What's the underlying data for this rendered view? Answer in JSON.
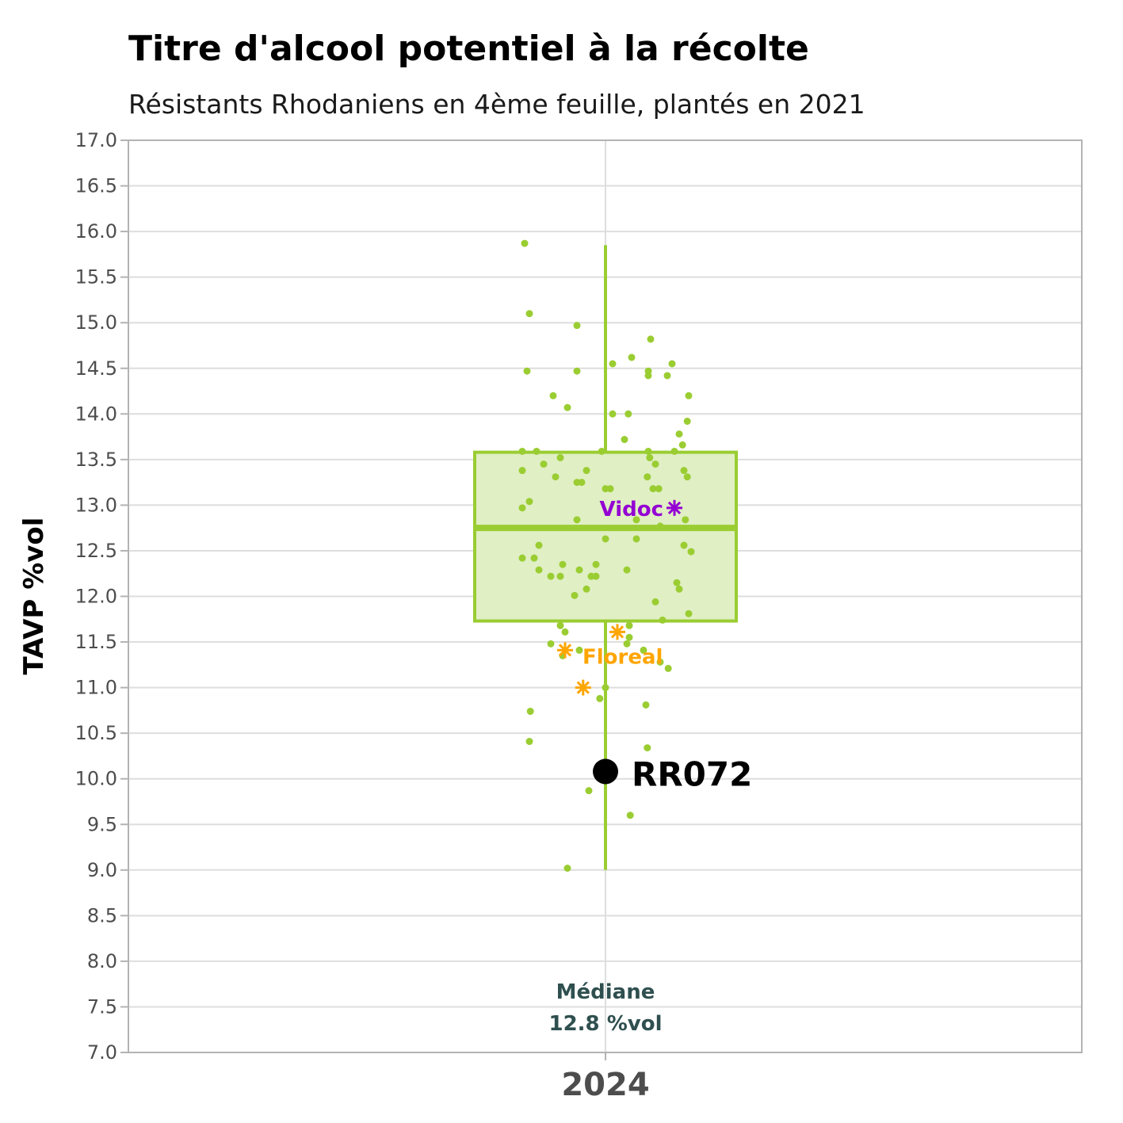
{
  "chart_data": {
    "type": "boxplot",
    "title": "Titre d'alcool potentiel à la récolte",
    "subtitle": "Résistants Rhodaniens en 4ème feuille, plantés en 2021",
    "ylabel": "TAVP %vol",
    "ylim": [
      7.0,
      17.0
    ],
    "ytick_step": 0.5,
    "grid": true,
    "categories": [
      "2024"
    ],
    "box": {
      "category": "2024",
      "whisker_low": 9.0,
      "q1": 11.73,
      "median": 12.75,
      "q3": 13.58,
      "whisker_high": 15.85,
      "color": "#9acd32",
      "fill": "#e0efc4"
    },
    "median_annotation": {
      "line1": "Médiane",
      "line2": "12.8 %vol",
      "color": "#2f4f4f"
    },
    "points": {
      "color": "#9acd32",
      "values": [
        {
          "dx": -0.17,
          "y": 15.87
        },
        {
          "dx": -0.16,
          "y": 15.1
        },
        {
          "dx": -0.06,
          "y": 14.97
        },
        {
          "dx": 0.095,
          "y": 14.82
        },
        {
          "dx": 0.055,
          "y": 14.62
        },
        {
          "dx": 0.015,
          "y": 14.55
        },
        {
          "dx": 0.14,
          "y": 14.55
        },
        {
          "dx": -0.165,
          "y": 14.47
        },
        {
          "dx": -0.06,
          "y": 14.47
        },
        {
          "dx": 0.09,
          "y": 14.47
        },
        {
          "dx": 0.09,
          "y": 14.42
        },
        {
          "dx": 0.13,
          "y": 14.42
        },
        {
          "dx": -0.11,
          "y": 14.2
        },
        {
          "dx": 0.175,
          "y": 14.2
        },
        {
          "dx": -0.08,
          "y": 14.07
        },
        {
          "dx": 0.015,
          "y": 14.0
        },
        {
          "dx": 0.048,
          "y": 14.0
        },
        {
          "dx": 0.172,
          "y": 13.92
        },
        {
          "dx": 0.155,
          "y": 13.78
        },
        {
          "dx": 0.04,
          "y": 13.72
        },
        {
          "dx": 0.162,
          "y": 13.66
        },
        {
          "dx": -0.175,
          "y": 13.59
        },
        {
          "dx": -0.145,
          "y": 13.59
        },
        {
          "dx": -0.008,
          "y": 13.59
        },
        {
          "dx": 0.09,
          "y": 13.59
        },
        {
          "dx": 0.145,
          "y": 13.59
        },
        {
          "dx": -0.095,
          "y": 13.52
        },
        {
          "dx": 0.093,
          "y": 13.52
        },
        {
          "dx": -0.13,
          "y": 13.45
        },
        {
          "dx": 0.105,
          "y": 13.45
        },
        {
          "dx": -0.04,
          "y": 13.38
        },
        {
          "dx": 0.165,
          "y": 13.38
        },
        {
          "dx": -0.175,
          "y": 13.38
        },
        {
          "dx": -0.105,
          "y": 13.31
        },
        {
          "dx": 0.088,
          "y": 13.31
        },
        {
          "dx": 0.172,
          "y": 13.31
        },
        {
          "dx": -0.06,
          "y": 13.25
        },
        {
          "dx": -0.05,
          "y": 13.25
        },
        {
          "dx": 0.0,
          "y": 13.18
        },
        {
          "dx": 0.01,
          "y": 13.18
        },
        {
          "dx": 0.1,
          "y": 13.18
        },
        {
          "dx": 0.112,
          "y": 13.18
        },
        {
          "dx": -0.16,
          "y": 13.04
        },
        {
          "dx": -0.175,
          "y": 12.97
        },
        {
          "dx": 0.168,
          "y": 12.84
        },
        {
          "dx": -0.06,
          "y": 12.84
        },
        {
          "dx": 0.065,
          "y": 12.84
        },
        {
          "dx": 0.115,
          "y": 12.77
        },
        {
          "dx": 0.0,
          "y": 12.63
        },
        {
          "dx": 0.065,
          "y": 12.63
        },
        {
          "dx": -0.14,
          "y": 12.56
        },
        {
          "dx": 0.165,
          "y": 12.56
        },
        {
          "dx": 0.18,
          "y": 12.49
        },
        {
          "dx": -0.175,
          "y": 12.42
        },
        {
          "dx": -0.15,
          "y": 12.42
        },
        {
          "dx": -0.09,
          "y": 12.35
        },
        {
          "dx": -0.02,
          "y": 12.35
        },
        {
          "dx": -0.14,
          "y": 12.29
        },
        {
          "dx": -0.055,
          "y": 12.29
        },
        {
          "dx": 0.045,
          "y": 12.29
        },
        {
          "dx": -0.115,
          "y": 12.22
        },
        {
          "dx": -0.095,
          "y": 12.22
        },
        {
          "dx": -0.03,
          "y": 12.22
        },
        {
          "dx": -0.02,
          "y": 12.22
        },
        {
          "dx": 0.15,
          "y": 12.15
        },
        {
          "dx": 0.155,
          "y": 12.08
        },
        {
          "dx": -0.04,
          "y": 12.08
        },
        {
          "dx": -0.065,
          "y": 12.01
        },
        {
          "dx": 0.105,
          "y": 11.94
        },
        {
          "dx": 0.175,
          "y": 11.81
        },
        {
          "dx": 0.12,
          "y": 11.74
        },
        {
          "dx": -0.095,
          "y": 11.68
        },
        {
          "dx": 0.05,
          "y": 11.68
        },
        {
          "dx": -0.085,
          "y": 11.61
        },
        {
          "dx": 0.05,
          "y": 11.55
        },
        {
          "dx": -0.115,
          "y": 11.48
        },
        {
          "dx": 0.045,
          "y": 11.48
        },
        {
          "dx": -0.055,
          "y": 11.41
        },
        {
          "dx": 0.08,
          "y": 11.41
        },
        {
          "dx": -0.09,
          "y": 11.35
        },
        {
          "dx": 0.115,
          "y": 11.28
        },
        {
          "dx": 0.132,
          "y": 11.21
        },
        {
          "dx": 0.0,
          "y": 11.0
        },
        {
          "dx": -0.012,
          "y": 10.88
        },
        {
          "dx": 0.085,
          "y": 10.81
        },
        {
          "dx": -0.158,
          "y": 10.74
        },
        {
          "dx": -0.16,
          "y": 10.41
        },
        {
          "dx": 0.088,
          "y": 10.34
        },
        {
          "dx": -0.035,
          "y": 9.87
        },
        {
          "dx": 0.052,
          "y": 9.6
        },
        {
          "dx": -0.08,
          "y": 9.02
        }
      ]
    },
    "labeled_varieties": [
      {
        "name": "Vidoc",
        "color": "#9400d3",
        "points": [
          {
            "dx": 0.145,
            "y": 12.97
          }
        ]
      },
      {
        "name": "Floreal",
        "color": "#ffa500",
        "points": [
          {
            "dx": -0.085,
            "y": 11.41
          },
          {
            "dx": 0.025,
            "y": 11.61
          },
          {
            "dx": -0.047,
            "y": 11.0
          }
        ]
      }
    ],
    "highlight": {
      "name": "RR072",
      "dx": 0.0,
      "y": 10.08,
      "color": "#000000"
    }
  }
}
